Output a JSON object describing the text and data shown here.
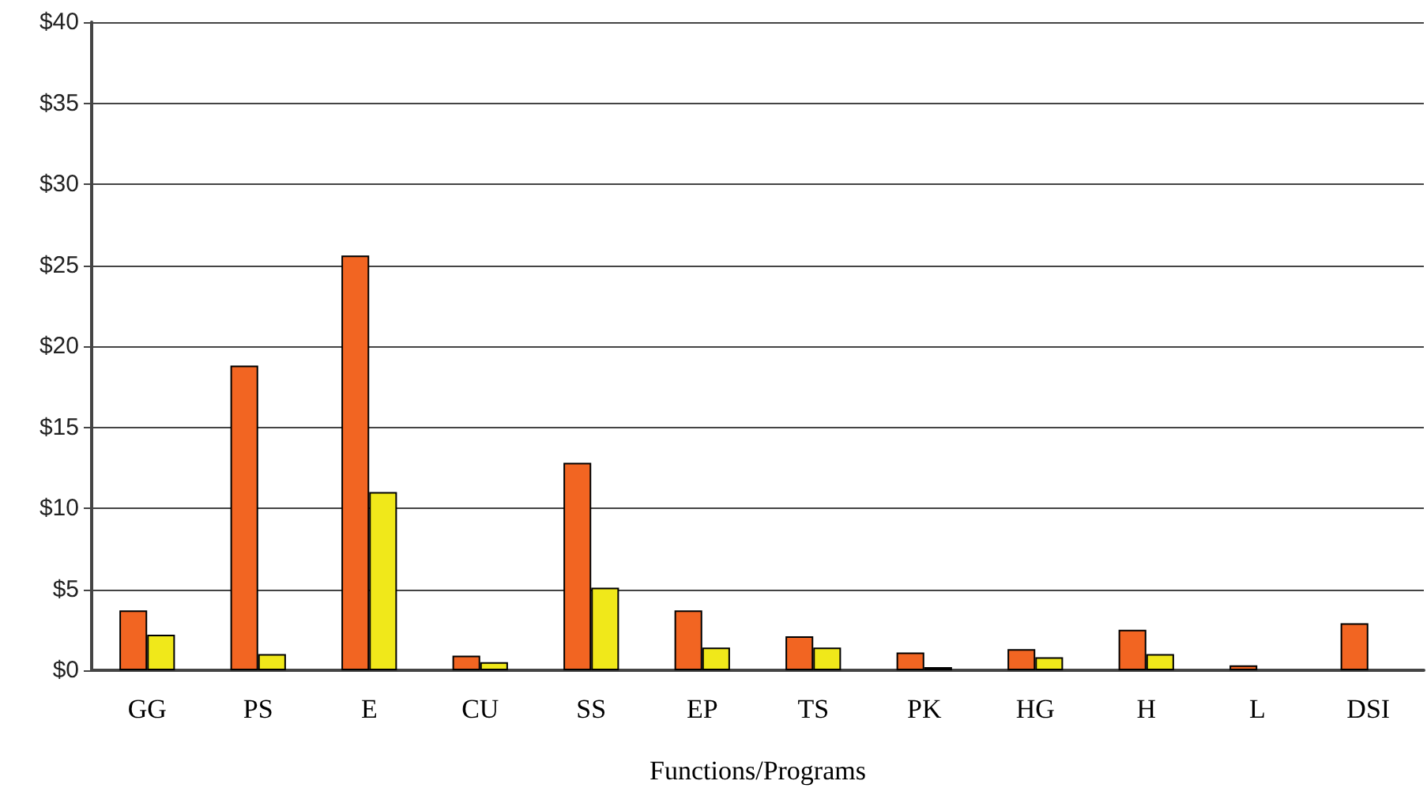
{
  "chart_data": {
    "type": "bar",
    "xlabel": "Functions/Programs",
    "categories": [
      "GG",
      "PS",
      "E",
      "CU",
      "SS",
      "EP",
      "TS",
      "PK",
      "HG",
      "H",
      "L",
      "DSI"
    ],
    "series": [
      {
        "color": "#f26522",
        "values": [
          3.7,
          18.8,
          25.6,
          0.9,
          12.8,
          3.7,
          2.1,
          1.1,
          1.3,
          2.5,
          0.3,
          2.9
        ]
      },
      {
        "color": "#f0e81a",
        "values": [
          2.2,
          1.0,
          11.0,
          0.5,
          5.1,
          1.4,
          1.4,
          0.2,
          0.8,
          1.0,
          null,
          null
        ]
      }
    ],
    "ylim": [
      0,
      40
    ],
    "yticks": [
      {
        "value": 0,
        "label": "$0"
      },
      {
        "value": 5,
        "label": "$5"
      },
      {
        "value": 10,
        "label": "$10"
      },
      {
        "value": 15,
        "label": "$15"
      },
      {
        "value": 20,
        "label": "$20"
      },
      {
        "value": 25,
        "label": "$25"
      },
      {
        "value": 30,
        "label": "$30"
      },
      {
        "value": 35,
        "label": "$35"
      },
      {
        "value": 40,
        "label": "$40"
      }
    ],
    "grid": "y"
  }
}
